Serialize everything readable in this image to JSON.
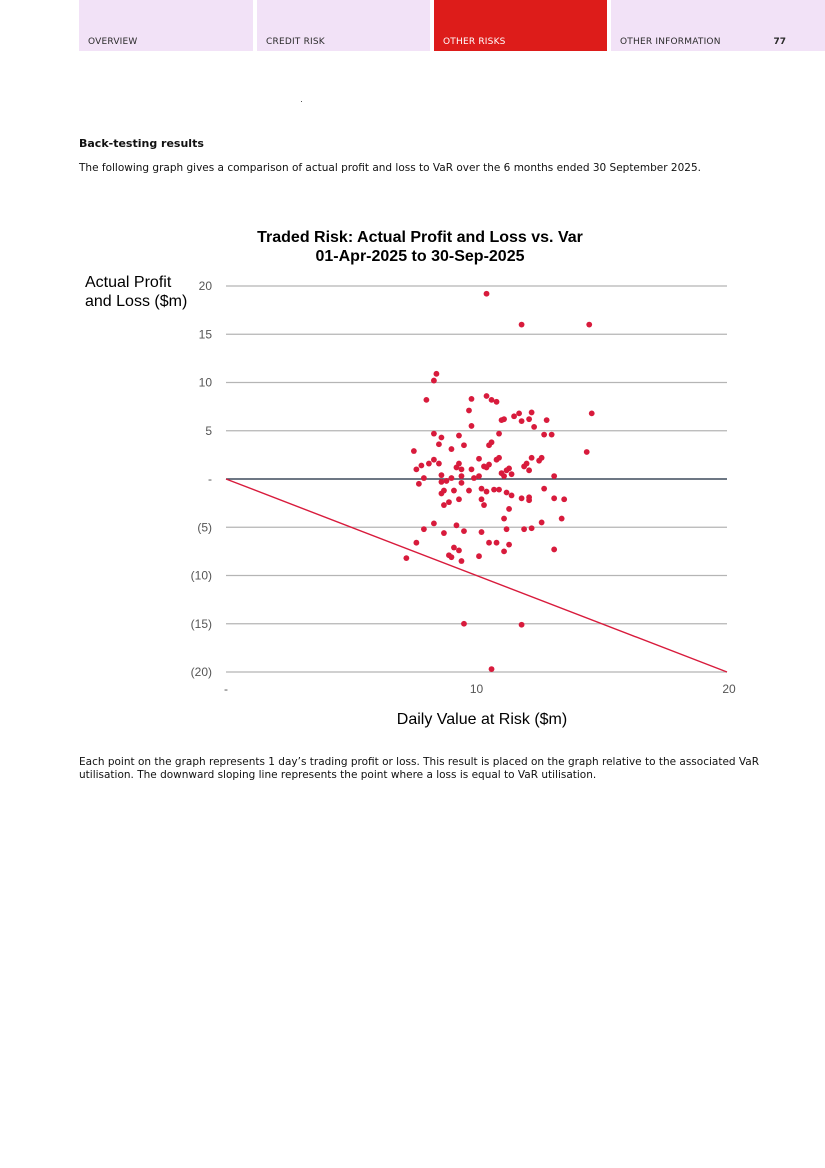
{
  "nav": {
    "tabs": [
      {
        "label": "OVERVIEW",
        "active": false
      },
      {
        "label": "CREDIT RISK",
        "active": false
      },
      {
        "label": "OTHER RISKS",
        "active": true
      },
      {
        "label": "OTHER INFORMATION",
        "active": false
      }
    ],
    "page_number": "77",
    "tab_color": "#f2e2f7",
    "active_tab_color": "#dd1c1a"
  },
  "content": {
    "heading": "Back-testing results",
    "intro": "The following graph gives a comparison of actual profit and loss to VaR over the 6 months ended 30 September 2025.",
    "footer": "Each point on the graph represents 1 day’s trading profit or loss. This result is placed on the graph relative to the associated VaR utilisation. The downward sloping line represents the point where a loss is equal to VaR utilisation."
  },
  "chart_data": {
    "type": "scatter",
    "title": "Traded Risk: Actual Profit and Loss vs. Var",
    "subtitle": "01-Apr-2025 to 30-Sep-2025",
    "xlabel": "Daily Value at Risk ($m)",
    "ylabel_line1": "Actual Profit",
    "ylabel_line2": "and Loss ($m)",
    "xlim": [
      0,
      20
    ],
    "ylim": [
      -20,
      20
    ],
    "x_ticks": [
      {
        "value": 0,
        "label": "-"
      },
      {
        "value": 10,
        "label": "10"
      },
      {
        "value": 20,
        "label": "20"
      }
    ],
    "y_ticks": [
      {
        "value": 20,
        "label": "20"
      },
      {
        "value": 15,
        "label": "15"
      },
      {
        "value": 10,
        "label": "10"
      },
      {
        "value": 5,
        "label": "5"
      },
      {
        "value": 0,
        "label": "-"
      },
      {
        "value": -5,
        "label": "(5)"
      },
      {
        "value": -10,
        "label": "(10)"
      },
      {
        "value": -15,
        "label": "(15)"
      },
      {
        "value": -20,
        "label": "(20)"
      }
    ],
    "grid": true,
    "point_color": "#d81b3c",
    "line_color": "#d81b3c",
    "zero_line_color": "#3d4a5c",
    "grid_color": "#b5b5b5",
    "reference_line": {
      "x": [
        0,
        20
      ],
      "y": [
        0,
        -20
      ]
    },
    "points": [
      [
        10.4,
        19.2
      ],
      [
        11.8,
        16.0
      ],
      [
        14.5,
        16.0
      ],
      [
        14.6,
        6.8
      ],
      [
        14.4,
        2.8
      ],
      [
        8.4,
        10.9
      ],
      [
        8.3,
        10.2
      ],
      [
        8.0,
        8.2
      ],
      [
        9.8,
        8.3
      ],
      [
        10.4,
        8.6
      ],
      [
        10.6,
        8.2
      ],
      [
        10.8,
        8.0
      ],
      [
        9.7,
        7.1
      ],
      [
        11.1,
        6.2
      ],
      [
        11.0,
        6.1
      ],
      [
        11.5,
        6.5
      ],
      [
        11.7,
        6.8
      ],
      [
        11.8,
        6.0
      ],
      [
        12.1,
        6.2
      ],
      [
        12.2,
        6.9
      ],
      [
        12.3,
        5.4
      ],
      [
        12.8,
        6.1
      ],
      [
        9.8,
        5.5
      ],
      [
        8.3,
        4.7
      ],
      [
        8.6,
        4.3
      ],
      [
        8.5,
        3.6
      ],
      [
        9.3,
        4.5
      ],
      [
        9.5,
        3.5
      ],
      [
        10.5,
        3.5
      ],
      [
        10.6,
        3.8
      ],
      [
        10.9,
        4.7
      ],
      [
        12.7,
        4.6
      ],
      [
        13.0,
        4.6
      ],
      [
        7.5,
        2.9
      ],
      [
        8.1,
        1.6
      ],
      [
        8.3,
        2.0
      ],
      [
        8.5,
        1.6
      ],
      [
        9.0,
        3.1
      ],
      [
        9.2,
        1.2
      ],
      [
        9.3,
        1.6
      ],
      [
        9.4,
        1.0
      ],
      [
        9.8,
        1.0
      ],
      [
        10.1,
        2.1
      ],
      [
        10.3,
        1.3
      ],
      [
        10.5,
        1.5
      ],
      [
        10.8,
        2.0
      ],
      [
        10.9,
        2.2
      ],
      [
        11.3,
        1.1
      ],
      [
        11.4,
        0.5
      ],
      [
        11.9,
        1.3
      ],
      [
        12.0,
        1.6
      ],
      [
        12.2,
        2.2
      ],
      [
        12.5,
        1.9
      ],
      [
        12.6,
        2.2
      ],
      [
        7.6,
        1.0
      ],
      [
        7.8,
        1.4
      ],
      [
        8.6,
        0.4
      ],
      [
        9.0,
        0.1
      ],
      [
        9.4,
        0.3
      ],
      [
        9.9,
        0.1
      ],
      [
        10.1,
        0.3
      ],
      [
        10.4,
        1.2
      ],
      [
        11.1,
        0.3
      ],
      [
        11.2,
        0.9
      ],
      [
        11.0,
        0.6
      ],
      [
        12.1,
        0.9
      ],
      [
        13.1,
        0.3
      ],
      [
        7.9,
        0.1
      ],
      [
        7.7,
        -0.5
      ],
      [
        8.6,
        -0.3
      ],
      [
        8.8,
        -0.2
      ],
      [
        9.1,
        -1.2
      ],
      [
        8.7,
        -1.2
      ],
      [
        8.6,
        -1.5
      ],
      [
        9.4,
        -0.4
      ],
      [
        9.7,
        -1.2
      ],
      [
        10.2,
        -1.0
      ],
      [
        10.4,
        -1.3
      ],
      [
        10.7,
        -1.1
      ],
      [
        10.9,
        -1.1
      ],
      [
        11.2,
        -1.4
      ],
      [
        11.4,
        -1.7
      ],
      [
        11.8,
        -2.0
      ],
      [
        12.1,
        -1.9
      ],
      [
        12.7,
        -1.0
      ],
      [
        13.1,
        -2.0
      ],
      [
        13.5,
        -2.1
      ],
      [
        8.7,
        -2.7
      ],
      [
        8.9,
        -2.4
      ],
      [
        9.3,
        -2.1
      ],
      [
        10.2,
        -2.1
      ],
      [
        10.3,
        -2.7
      ],
      [
        11.3,
        -3.1
      ],
      [
        12.1,
        -2.2
      ],
      [
        11.1,
        -4.1
      ],
      [
        13.4,
        -4.1
      ],
      [
        12.6,
        -4.5
      ],
      [
        8.3,
        -4.6
      ],
      [
        9.2,
        -4.8
      ],
      [
        7.9,
        -5.2
      ],
      [
        8.7,
        -5.6
      ],
      [
        9.5,
        -5.4
      ],
      [
        10.2,
        -5.5
      ],
      [
        11.2,
        -5.2
      ],
      [
        11.9,
        -5.2
      ],
      [
        12.2,
        -5.1
      ],
      [
        7.6,
        -6.6
      ],
      [
        10.5,
        -6.6
      ],
      [
        10.8,
        -6.6
      ],
      [
        11.3,
        -6.8
      ],
      [
        9.1,
        -7.1
      ],
      [
        9.3,
        -7.4
      ],
      [
        11.1,
        -7.5
      ],
      [
        13.1,
        -7.3
      ],
      [
        8.9,
        -7.9
      ],
      [
        9.0,
        -8.1
      ],
      [
        10.1,
        -8.0
      ],
      [
        7.2,
        -8.2
      ],
      [
        9.4,
        -8.5
      ],
      [
        9.5,
        -15.0
      ],
      [
        11.8,
        -15.1
      ],
      [
        10.6,
        -19.7
      ]
    ]
  }
}
